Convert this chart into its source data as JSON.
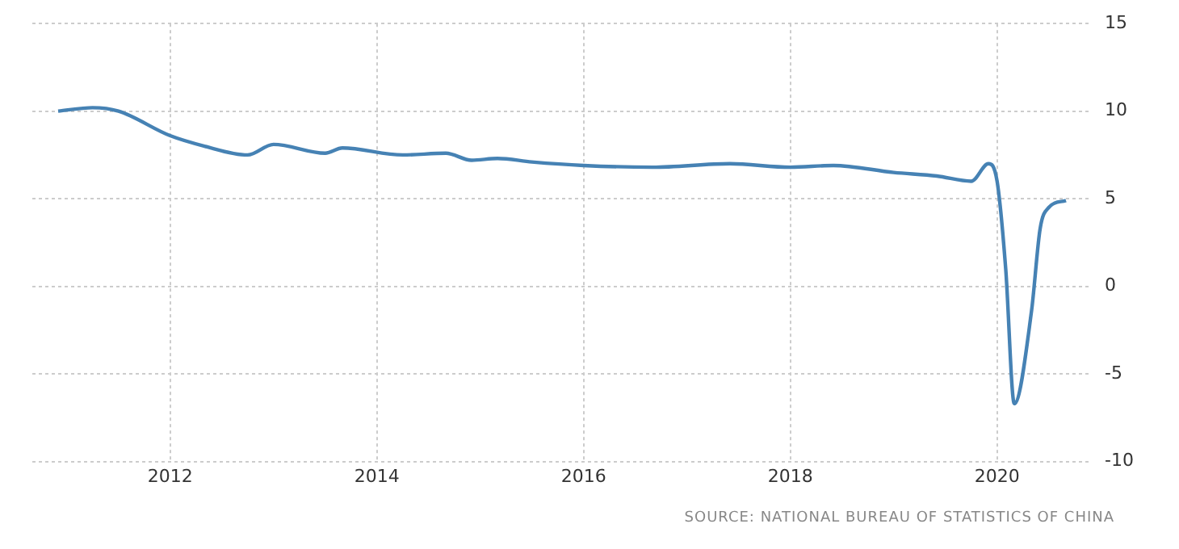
{
  "chart_data": {
    "type": "line",
    "x": [
      "2010-12",
      "2011-04",
      "2011-07",
      "2012-01",
      "2012-05",
      "2012-10",
      "2013-01",
      "2013-07",
      "2013-09",
      "2014-04",
      "2014-09",
      "2014-12",
      "2015-03",
      "2015-07",
      "2016-01",
      "2016-09",
      "2017-06",
      "2018-01",
      "2018-06",
      "2019-01",
      "2019-06",
      "2019-10",
      "2019-12",
      "2020-01",
      "2020-02",
      "2020-03",
      "2020-05",
      "2020-06",
      "2020-07",
      "2020-09"
    ],
    "series": [
      {
        "color": "#4682b4",
        "values": [
          10.0,
          10.2,
          10.0,
          8.6,
          8.0,
          7.5,
          8.1,
          7.6,
          7.9,
          7.5,
          7.6,
          7.2,
          7.3,
          7.1,
          6.9,
          6.8,
          7.0,
          6.8,
          6.9,
          6.5,
          6.3,
          6.0,
          7.0,
          6.0,
          1.0,
          -6.7,
          -1.4,
          3.3,
          4.5,
          4.9
        ]
      }
    ],
    "xlim": [
      "2010-09",
      "2020-12"
    ],
    "xticks": [
      "2012",
      "2014",
      "2016",
      "2018",
      "2020"
    ],
    "ylim": [
      -10,
      15
    ],
    "yticks": [
      -10,
      -5,
      0,
      5,
      10,
      15
    ],
    "grid": true,
    "legend": false,
    "marker": "none",
    "line_style": "solid",
    "annotations": [
      "SOURCE: NATIONAL BUREAU OF STATISTICS OF CHINA"
    ]
  }
}
